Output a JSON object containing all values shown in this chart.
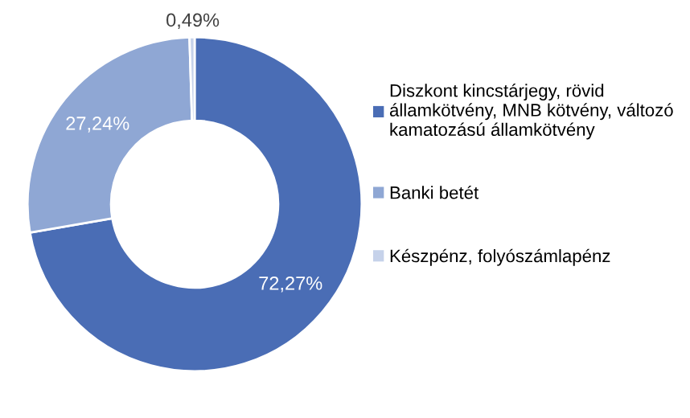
{
  "chart_data": {
    "type": "donut",
    "categories": [
      "Diszkont kincstárjegy, rövid\nállamkötvény, MNB kötvény, változó\nkamatozású államkötvény",
      "Banki betét",
      "Készpénz, folyószámlapénz"
    ],
    "values": [
      72.27,
      27.24,
      0.49
    ],
    "colors": [
      "#4a6db5",
      "#8fa7d4",
      "#c6d2ea"
    ],
    "value_labels": [
      "72,27%",
      "27,24%",
      "0,49%"
    ],
    "legend": "right"
  }
}
